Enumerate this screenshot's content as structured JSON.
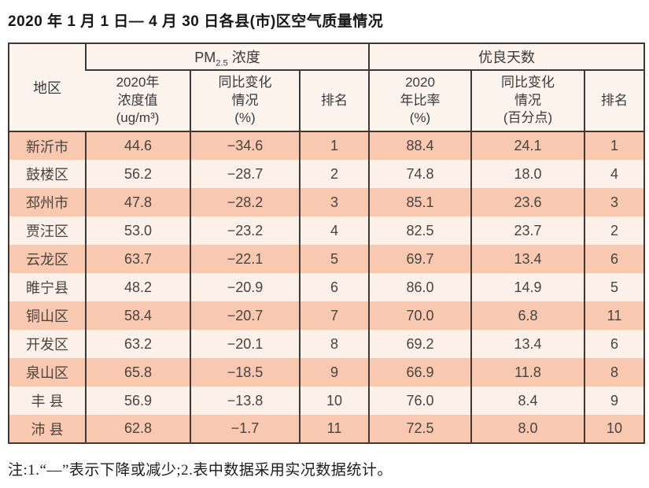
{
  "page": {
    "title": "2020 年 1 月 1 日— 4 月 30 日各县(市)区空气质量情况",
    "footnote": "注:1.“—”表示下降或减少;2.表中数据采用实况数据统计。"
  },
  "table": {
    "header": {
      "region": "地区",
      "pm_group": {
        "prefix": "PM",
        "sub": "2.5",
        "suffix": " 浓度"
      },
      "good_days_group": "优良天数",
      "pm_cols": [
        "2020年\n浓度值\n(ug/m³)",
        "同比变化\n情况\n(%)",
        "排名"
      ],
      "good_cols": [
        "2020\n年比率\n(%)",
        "同比变化\n情况\n(百分点)",
        "排名"
      ]
    },
    "rows": [
      {
        "region": "新沂市",
        "values": [
          "44.6",
          "−34.6",
          "1",
          "88.4",
          "24.1",
          "1"
        ]
      },
      {
        "region": "鼓楼区",
        "values": [
          "56.2",
          "−28.7",
          "2",
          "74.8",
          "18.0",
          "4"
        ]
      },
      {
        "region": "邳州市",
        "values": [
          "47.8",
          "−28.2",
          "3",
          "85.1",
          "23.6",
          "3"
        ]
      },
      {
        "region": "贾汪区",
        "values": [
          "53.0",
          "−23.2",
          "4",
          "82.5",
          "23.7",
          "2"
        ]
      },
      {
        "region": "云龙区",
        "values": [
          "63.7",
          "−22.1",
          "5",
          "69.7",
          "13.4",
          "6"
        ]
      },
      {
        "region": "睢宁县",
        "values": [
          "48.2",
          "−20.9",
          "6",
          "86.0",
          "14.9",
          "5"
        ]
      },
      {
        "region": "铜山区",
        "values": [
          "58.4",
          "−20.7",
          "7",
          "70.0",
          "6.8",
          "11"
        ]
      },
      {
        "region": "开发区",
        "values": [
          "63.2",
          "−20.1",
          "8",
          "69.2",
          "13.4",
          "6"
        ]
      },
      {
        "region": "泉山区",
        "values": [
          "65.8",
          "−18.5",
          "9",
          "66.9",
          "11.8",
          "8"
        ]
      },
      {
        "region": "丰 县",
        "values": [
          "56.9",
          "−13.8",
          "10",
          "76.0",
          "8.4",
          "9"
        ]
      },
      {
        "region": "沛 县",
        "values": [
          "62.8",
          "−1.7",
          "11",
          "72.5",
          "8.0",
          "10"
        ]
      }
    ]
  },
  "colors": {
    "row_dark": "#f8c9b0",
    "row_light": "#fdf0e9",
    "header_bg": "#fcf3ed",
    "border": "#3f3936",
    "cell_text": "#4a433e",
    "title_text": "#171717"
  }
}
